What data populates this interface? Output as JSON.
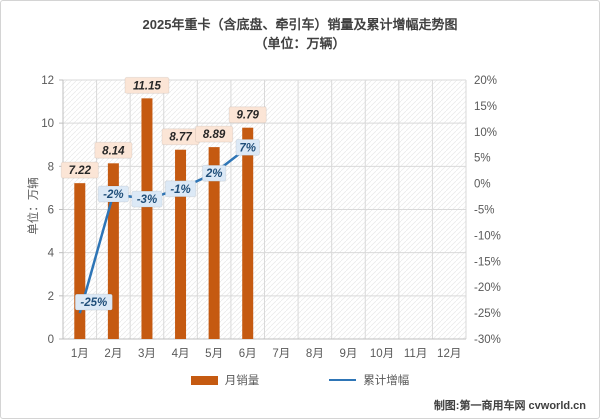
{
  "title": {
    "line1": "2025年重卡（含底盘、牵引车）销量及累计增幅走势图",
    "line2": "（单位：万辆）"
  },
  "credit": "制图:第一商用车网 cvworld.cn",
  "chart_data": {
    "type": "bar+line combo",
    "title": "2025年重卡（含底盘、牵引车）销量及累计增幅走势图（单位：万辆）",
    "categories": [
      "1月",
      "2月",
      "3月",
      "4月",
      "5月",
      "6月",
      "7月",
      "8月",
      "9月",
      "10月",
      "11月",
      "12月"
    ],
    "series": [
      {
        "name": "月销量",
        "type": "bar",
        "axis": "left",
        "values": [
          7.22,
          8.14,
          11.15,
          8.77,
          8.89,
          9.79,
          null,
          null,
          null,
          null,
          null,
          null
        ],
        "labels": [
          "7.22",
          "8.14",
          "11.15",
          "8.77",
          "8.89",
          "9.79"
        ]
      },
      {
        "name": "累计增幅",
        "type": "line",
        "axis": "right",
        "values": [
          -25,
          -2,
          -3,
          -1,
          2,
          7,
          null,
          null,
          null,
          null,
          null,
          null
        ],
        "labels": [
          "-25%",
          "-2%",
          "-3%",
          "-1%",
          "2%",
          "7%"
        ]
      }
    ],
    "left_axis": {
      "title": "单位：万辆",
      "min": 0,
      "max": 12,
      "step": 2,
      "ticks": [
        "12",
        "10",
        "8",
        "6",
        "4",
        "2",
        "0"
      ]
    },
    "right_axis": {
      "min": -30,
      "max": 20,
      "step": 5,
      "ticks": [
        "20%",
        "15%",
        "10%",
        "5%",
        "0%",
        "-5%",
        "-10%",
        "-15%",
        "-20%",
        "-25%",
        "-30%"
      ]
    },
    "grid": "on",
    "legend_position": "bottom",
    "colors": {
      "bar": "#C55A11",
      "bar_label_bg": "#FBE5D6",
      "bar_label_text": "#262626",
      "line": "#2E75B6",
      "line_label_bg": "#DCE9F6",
      "line_label_text": "#1F4E79",
      "grid": "#D9D9D9",
      "axis_line": "#BFBFBF",
      "axis_text": "#595959",
      "hatch": "#EBEBEB",
      "title_text": "#404040"
    }
  }
}
